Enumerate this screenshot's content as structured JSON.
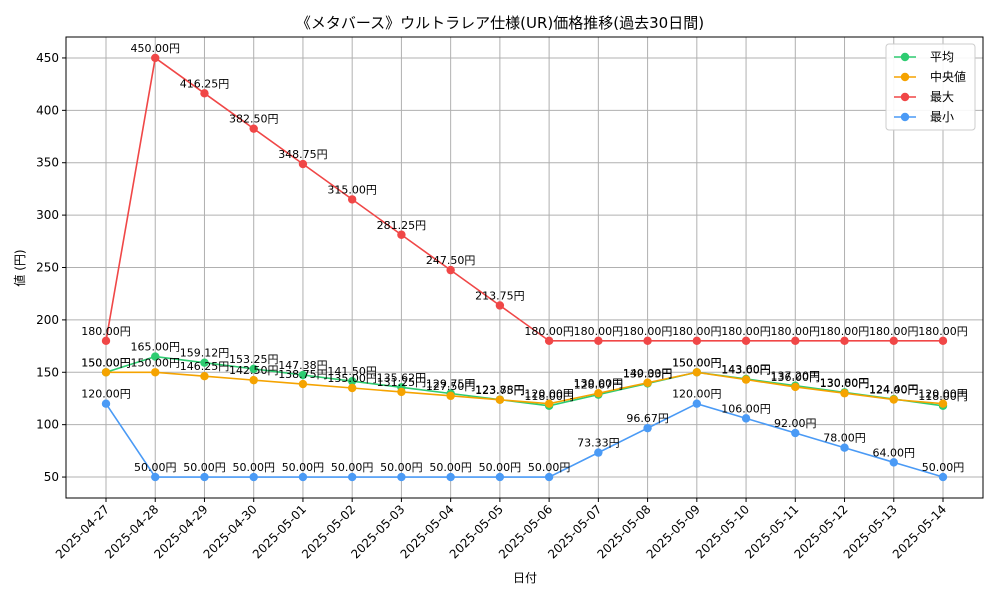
{
  "chart_data": {
    "type": "line",
    "title": "《メタバース》ウルトラレア仕様(UR)価格推移(過去30日間)",
    "xlabel": "日付",
    "ylabel": "値 (円)",
    "ylim": [
      30,
      470
    ],
    "yticks": [
      50,
      100,
      150,
      200,
      250,
      300,
      350,
      400,
      450
    ],
    "grid": true,
    "legend_position": "top-right",
    "categories": [
      "2025-04-27",
      "2025-04-28",
      "2025-04-29",
      "2025-04-30",
      "2025-05-01",
      "2025-05-02",
      "2025-05-03",
      "2025-05-04",
      "2025-05-05",
      "2025-05-06",
      "2025-05-07",
      "2025-05-08",
      "2025-05-09",
      "2025-05-10",
      "2025-05-11",
      "2025-05-12",
      "2025-05-13",
      "2025-05-14"
    ],
    "series": [
      {
        "name": "平均",
        "color": "#2ecc71",
        "values": [
          150.0,
          165.0,
          159.12,
          153.25,
          147.38,
          141.5,
          135.62,
          129.75,
          123.88,
          118.0,
          128.67,
          139.33,
          150.0,
          143.6,
          137.2,
          130.8,
          124.4,
          118.0
        ],
        "labels": [
          "150.00円",
          "165.00円",
          "159.12円",
          "153.25円",
          "147.38円",
          "141.50円",
          "135.62円",
          "129.75円",
          "123.88円",
          "118.00円",
          "128.67円",
          "139.33円",
          "150.00円",
          "143.60円",
          "137.20円",
          "130.80円",
          "124.40円",
          "118.00円"
        ]
      },
      {
        "name": "中央値",
        "color": "#f5a300",
        "values": [
          150.0,
          150.0,
          146.25,
          142.5,
          138.75,
          135.0,
          131.25,
          127.5,
          123.75,
          120.0,
          130.0,
          140.0,
          150.0,
          143.0,
          136.0,
          130.0,
          124.0,
          120.0
        ],
        "labels": [
          "150.00円",
          "150.00円",
          "146.25円",
          "142.50円",
          "138.75円",
          "135.00円",
          "131.25円",
          "127.50円",
          "123.75円",
          "120.00円",
          "130.00円",
          "140.00円",
          "150.00円",
          "143.00円",
          "136.00円",
          "130.00円",
          "124.00円",
          "120.00円"
        ]
      },
      {
        "name": "最大",
        "color": "#f04747",
        "values": [
          180.0,
          450.0,
          416.25,
          382.5,
          348.75,
          315.0,
          281.25,
          247.5,
          213.75,
          180.0,
          180.0,
          180.0,
          180.0,
          180.0,
          180.0,
          180.0,
          180.0,
          180.0
        ],
        "labels": [
          "180.00円",
          "450.00円",
          "416.25円",
          "382.50円",
          "348.75円",
          "315.00円",
          "281.25円",
          "247.50円",
          "213.75円",
          "180.00円",
          "180.00円",
          "180.00円",
          "180.00円",
          "180.00円",
          "180.00円",
          "180.00円",
          "180.00円",
          "180.00円"
        ]
      },
      {
        "name": "最小",
        "color": "#4a9af5",
        "values": [
          120.0,
          50.0,
          50.0,
          50.0,
          50.0,
          50.0,
          50.0,
          50.0,
          50.0,
          50.0,
          73.33,
          96.67,
          120.0,
          106.0,
          92.0,
          78.0,
          64.0,
          50.0
        ],
        "labels": [
          "120.00円",
          "50.00円",
          "50.00円",
          "50.00円",
          "50.00円",
          "50.00円",
          "50.00円",
          "50.00円",
          "50.00円",
          "50.00円",
          "73.33円",
          "96.67円",
          "120.00円",
          "106.00円",
          "92.00円",
          "78.00円",
          "64.00円",
          "50.00円"
        ]
      }
    ]
  }
}
